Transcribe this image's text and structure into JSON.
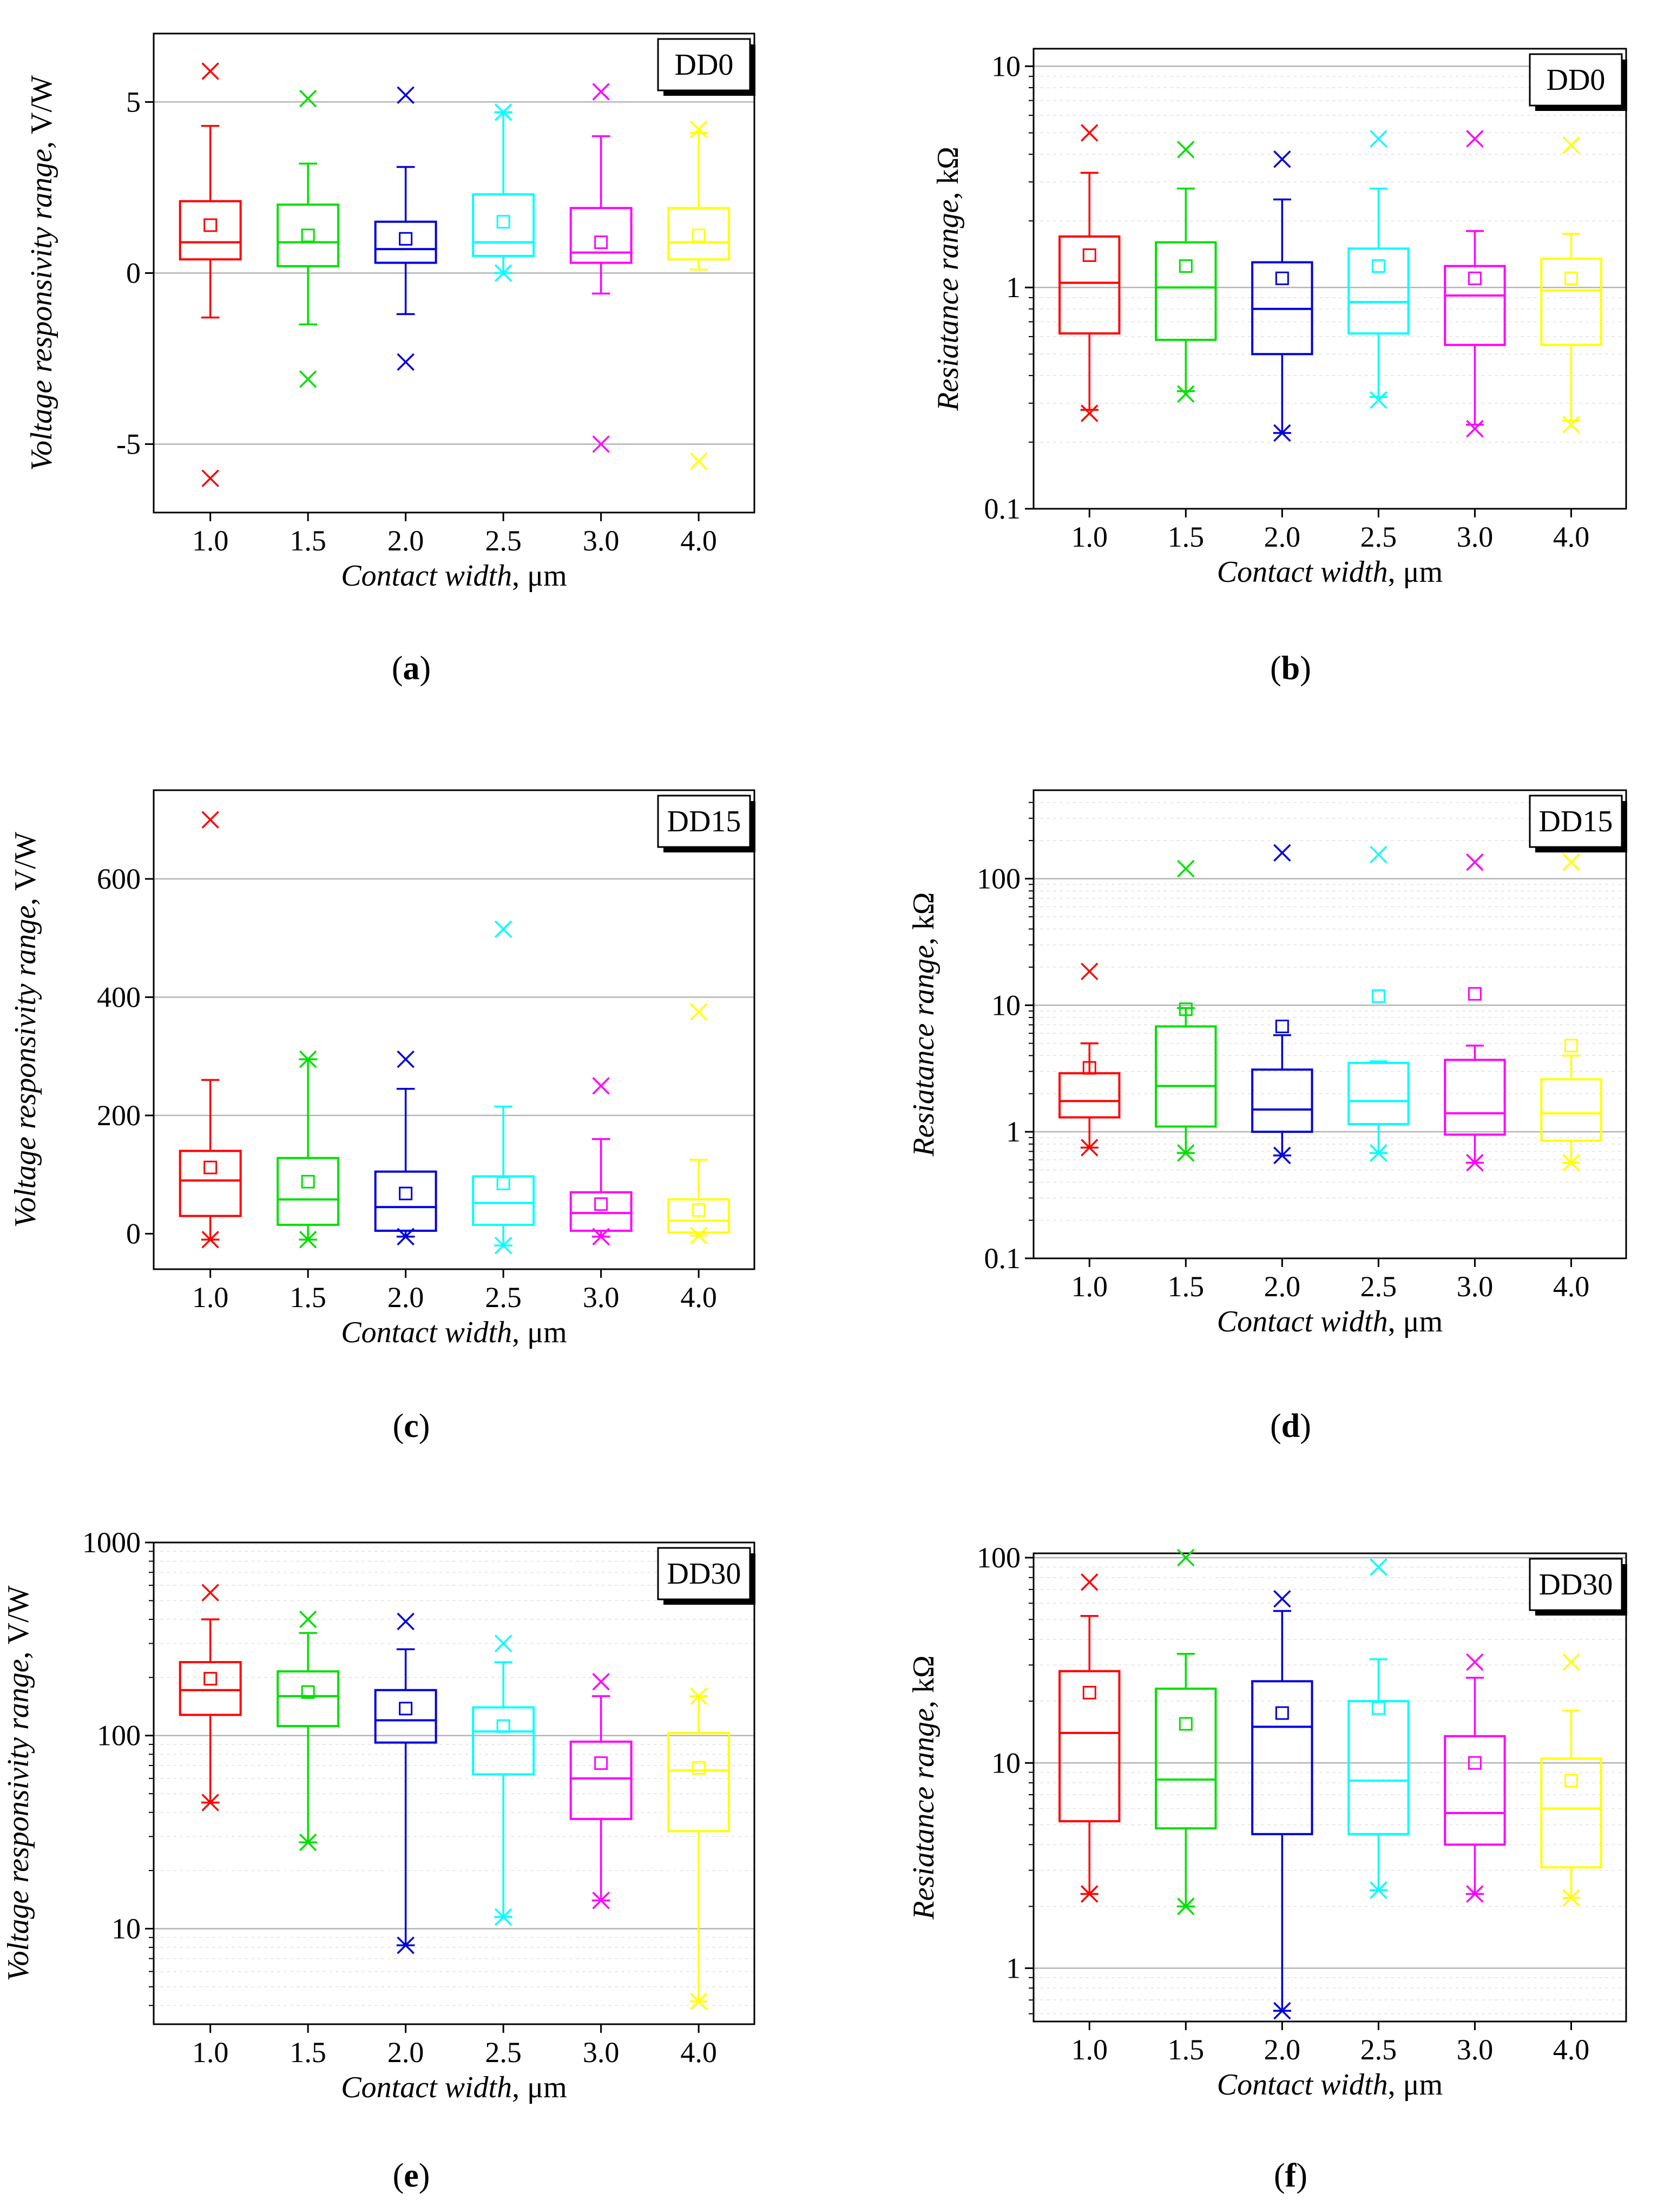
{
  "figure": {
    "category_label_x": "Contact width, μm",
    "colors": [
      "#ff0000",
      "#00e000",
      "#0000dd",
      "#00ffff",
      "#ff00ff",
      "#ffff00"
    ]
  },
  "chart_data": [
    {
      "id": "a",
      "type": "box",
      "scale": "linear",
      "panel_label": "a",
      "legend": "DD0",
      "xlabel_italic": "Contact width",
      "xlabel_unit": ", μm",
      "ylabel_italic": "Voltage responsivity range",
      "ylabel_unit": ", V/W",
      "ylim": [
        -7,
        7
      ],
      "categories": [
        "1.0",
        "1.5",
        "2.0",
        "2.5",
        "3.0",
        "4.0"
      ],
      "yticks": [
        -5,
        0,
        5
      ],
      "ytick_labels": [
        "-5",
        "0",
        "5"
      ],
      "gridlines": [
        -5,
        0,
        5
      ],
      "boxes": [
        {
          "q1": 0.4,
          "median": 0.9,
          "q3": 2.1,
          "whisker_low": -1.3,
          "whisker_high": 4.3,
          "mean": 1.4,
          "max": 5.9,
          "min": -6.0
        },
        {
          "q1": 0.2,
          "median": 0.9,
          "q3": 2.0,
          "whisker_low": -1.5,
          "whisker_high": 3.2,
          "mean": 1.1,
          "max": 5.1,
          "min": -3.1
        },
        {
          "q1": 0.3,
          "median": 0.7,
          "q3": 1.5,
          "whisker_low": -1.2,
          "whisker_high": 3.1,
          "mean": 1.0,
          "max": 5.2,
          "min": -2.6
        },
        {
          "q1": 0.5,
          "median": 0.9,
          "q3": 2.3,
          "whisker_low": 0.0,
          "whisker_high": 4.7,
          "mean": 1.5,
          "max": 4.7,
          "min": 0.0
        },
        {
          "q1": 0.3,
          "median": 0.6,
          "q3": 1.9,
          "whisker_low": -0.6,
          "whisker_high": 4.0,
          "mean": 0.9,
          "max": 5.3,
          "min": -5.0
        },
        {
          "q1": 0.4,
          "median": 0.9,
          "q3": 1.9,
          "whisker_low": 0.1,
          "whisker_high": 4.1,
          "mean": 1.1,
          "max": 4.2,
          "min": -5.5
        }
      ]
    },
    {
      "id": "b",
      "type": "box",
      "scale": "log",
      "panel_label": "b",
      "legend": "DD0",
      "xlabel_italic": "Contact width",
      "xlabel_unit": ", μm",
      "ylabel_italic": "Resiatance range",
      "ylabel_unit": ", kΩ",
      "ylim": [
        0.1,
        12
      ],
      "categories": [
        "1.0",
        "1.5",
        "2.0",
        "2.5",
        "3.0",
        "4.0"
      ],
      "yticks": [
        0.1,
        1,
        10
      ],
      "ytick_labels": [
        "0.1",
        "1",
        "10"
      ],
      "gridlines": [
        1,
        10
      ],
      "boxes": [
        {
          "q1": 0.62,
          "median": 1.05,
          "q3": 1.7,
          "whisker_low": 0.28,
          "whisker_high": 3.3,
          "mean": 1.4,
          "max": 5.0,
          "min": 0.27
        },
        {
          "q1": 0.58,
          "median": 1.0,
          "q3": 1.6,
          "whisker_low": 0.34,
          "whisker_high": 2.8,
          "mean": 1.25,
          "max": 4.2,
          "min": 0.33
        },
        {
          "q1": 0.5,
          "median": 0.8,
          "q3": 1.3,
          "whisker_low": 0.22,
          "whisker_high": 2.5,
          "mean": 1.1,
          "max": 3.8,
          "min": 0.22
        },
        {
          "q1": 0.62,
          "median": 0.86,
          "q3": 1.5,
          "whisker_low": 0.32,
          "whisker_high": 2.8,
          "mean": 1.25,
          "max": 4.7,
          "min": 0.31
        },
        {
          "q1": 0.55,
          "median": 0.92,
          "q3": 1.25,
          "whisker_low": 0.24,
          "whisker_high": 1.8,
          "mean": 1.1,
          "max": 4.7,
          "min": 0.23
        },
        {
          "q1": 0.55,
          "median": 0.97,
          "q3": 1.35,
          "whisker_low": 0.25,
          "whisker_high": 1.75,
          "mean": 1.1,
          "max": 4.4,
          "min": 0.24
        }
      ]
    },
    {
      "id": "c",
      "type": "box",
      "scale": "linear",
      "panel_label": "c",
      "legend": "DD15",
      "xlabel_italic": "Contact width",
      "xlabel_unit": ", μm",
      "ylabel_italic": "Voltage responsivity range",
      "ylabel_unit": ", V/W",
      "ylim": [
        -60,
        750
      ],
      "categories": [
        "1.0",
        "1.5",
        "2.0",
        "2.5",
        "3.0",
        "4.0"
      ],
      "yticks": [
        0,
        200,
        400,
        600
      ],
      "ytick_labels": [
        "0",
        "200",
        "400",
        "600"
      ],
      "gridlines": [
        200,
        400,
        600
      ],
      "boxes": [
        {
          "q1": 30,
          "median": 90,
          "q3": 140,
          "whisker_low": -10,
          "whisker_high": 260,
          "mean": 112,
          "max": 700,
          "min": -10
        },
        {
          "q1": 15,
          "median": 58,
          "q3": 128,
          "whisker_low": -10,
          "whisker_high": 295,
          "mean": 88,
          "max": 295,
          "min": -10
        },
        {
          "q1": 5,
          "median": 45,
          "q3": 105,
          "whisker_low": -5,
          "whisker_high": 245,
          "mean": 68,
          "max": 295,
          "min": -5
        },
        {
          "q1": 15,
          "median": 52,
          "q3": 97,
          "whisker_low": -20,
          "whisker_high": 215,
          "mean": 85,
          "max": 515,
          "min": -20
        },
        {
          "q1": 5,
          "median": 35,
          "q3": 70,
          "whisker_low": -5,
          "whisker_high": 160,
          "mean": 50,
          "max": 250,
          "min": -5
        },
        {
          "q1": 2,
          "median": 22,
          "q3": 58,
          "whisker_low": -3,
          "whisker_high": 125,
          "mean": 40,
          "max": 375,
          "min": -3
        }
      ]
    },
    {
      "id": "d",
      "type": "box",
      "scale": "log",
      "panel_label": "d",
      "legend": "DD15",
      "xlabel_italic": "Contact width",
      "xlabel_unit": ", μm",
      "ylabel_italic": "Resiatance range",
      "ylabel_unit": ", kΩ",
      "ylim": [
        0.1,
        500
      ],
      "categories": [
        "1.0",
        "1.5",
        "2.0",
        "2.5",
        "3.0",
        "4.0"
      ],
      "yticks": [
        0.1,
        1,
        10,
        100
      ],
      "ytick_labels": [
        "0.1",
        "1",
        "10",
        "100"
      ],
      "gridlines": [
        1,
        10,
        100
      ],
      "boxes": [
        {
          "q1": 1.3,
          "median": 1.75,
          "q3": 2.9,
          "whisker_low": 0.75,
          "whisker_high": 5.0,
          "mean": 3.2,
          "max": 18.5,
          "min": 0.75
        },
        {
          "q1": 1.1,
          "median": 2.3,
          "q3": 6.8,
          "whisker_low": 0.68,
          "whisker_high": 9.5,
          "mean": 9.3,
          "max": 120,
          "min": 0.68
        },
        {
          "q1": 1.0,
          "median": 1.5,
          "q3": 3.1,
          "whisker_low": 0.65,
          "whisker_high": 5.8,
          "mean": 6.8,
          "max": 160,
          "min": 0.65
        },
        {
          "q1": 1.15,
          "median": 1.75,
          "q3": 3.5,
          "whisker_low": 0.68,
          "whisker_high": 3.6,
          "mean": 11.8,
          "max": 155,
          "min": 0.68
        },
        {
          "q1": 0.95,
          "median": 1.4,
          "q3": 3.7,
          "whisker_low": 0.57,
          "whisker_high": 4.8,
          "mean": 12.3,
          "max": 135,
          "min": 0.57
        },
        {
          "q1": 0.85,
          "median": 1.4,
          "q3": 2.6,
          "whisker_low": 0.57,
          "whisker_high": 4.0,
          "mean": 4.8,
          "max": 135,
          "min": 0.57
        }
      ]
    },
    {
      "id": "e",
      "type": "box",
      "scale": "log",
      "panel_label": "e",
      "legend": "DD30",
      "xlabel_italic": "Contact width",
      "xlabel_unit": ", μm",
      "ylabel_italic": "Voltage responsivity range",
      "ylabel_unit": ", V/W",
      "ylim": [
        3.2,
        1000
      ],
      "categories": [
        "1.0",
        "1.5",
        "2.0",
        "2.5",
        "3.0",
        "4.0"
      ],
      "yticks": [
        10,
        100,
        1000
      ],
      "ytick_labels": [
        "10",
        "100",
        "1000"
      ],
      "gridlines": [
        10,
        100
      ],
      "boxes": [
        {
          "q1": 128,
          "median": 172,
          "q3": 240,
          "whisker_low": 45,
          "whisker_high": 400,
          "mean": 197,
          "max": 550,
          "min": 45
        },
        {
          "q1": 112,
          "median": 160,
          "q3": 215,
          "whisker_low": 28,
          "whisker_high": 340,
          "mean": 168,
          "max": 400,
          "min": 28
        },
        {
          "q1": 92,
          "median": 120,
          "q3": 172,
          "whisker_low": 8.2,
          "whisker_high": 280,
          "mean": 138,
          "max": 390,
          "min": 8.2
        },
        {
          "q1": 63,
          "median": 105,
          "q3": 140,
          "whisker_low": 11.5,
          "whisker_high": 240,
          "mean": 112,
          "max": 300,
          "min": 11.5
        },
        {
          "q1": 37,
          "median": 60,
          "q3": 93,
          "whisker_low": 14,
          "whisker_high": 160,
          "mean": 72,
          "max": 190,
          "min": 14
        },
        {
          "q1": 32,
          "median": 66,
          "q3": 103,
          "whisker_low": 4.2,
          "whisker_high": 160,
          "mean": 68,
          "max": 160,
          "min": 4.2
        }
      ]
    },
    {
      "id": "f",
      "type": "box",
      "scale": "log",
      "panel_label": "f",
      "legend": "DD30",
      "xlabel_italic": "Contact width",
      "xlabel_unit": ", μm",
      "ylabel_italic": "Resiatance range",
      "ylabel_unit": ", kΩ",
      "ylim": [
        0.55,
        105
      ],
      "categories": [
        "1.0",
        "1.5",
        "2.0",
        "2.5",
        "3.0",
        "4.0"
      ],
      "yticks": [
        1,
        10,
        100
      ],
      "ytick_labels": [
        "1",
        "10",
        "100"
      ],
      "gridlines": [
        1,
        10,
        100
      ],
      "boxes": [
        {
          "q1": 5.2,
          "median": 14,
          "q3": 28,
          "whisker_low": 2.3,
          "whisker_high": 52,
          "mean": 22,
          "max": 76,
          "min": 2.3
        },
        {
          "q1": 4.8,
          "median": 8.3,
          "q3": 23,
          "whisker_low": 2.0,
          "whisker_high": 34,
          "mean": 15.5,
          "max": 100,
          "min": 2.0
        },
        {
          "q1": 4.5,
          "median": 15,
          "q3": 25,
          "whisker_low": 0.62,
          "whisker_high": 55,
          "mean": 17.5,
          "max": 63,
          "min": 0.62
        },
        {
          "q1": 4.5,
          "median": 8.2,
          "q3": 20,
          "whisker_low": 2.4,
          "whisker_high": 32,
          "mean": 18.5,
          "max": 90,
          "min": 2.4
        },
        {
          "q1": 4.0,
          "median": 5.7,
          "q3": 13.5,
          "whisker_low": 2.3,
          "whisker_high": 26,
          "mean": 10,
          "max": 31,
          "min": 2.3
        },
        {
          "q1": 3.1,
          "median": 6.0,
          "q3": 10.5,
          "whisker_low": 2.2,
          "whisker_high": 18,
          "mean": 8.2,
          "max": 31,
          "min": 2.2
        }
      ]
    }
  ]
}
